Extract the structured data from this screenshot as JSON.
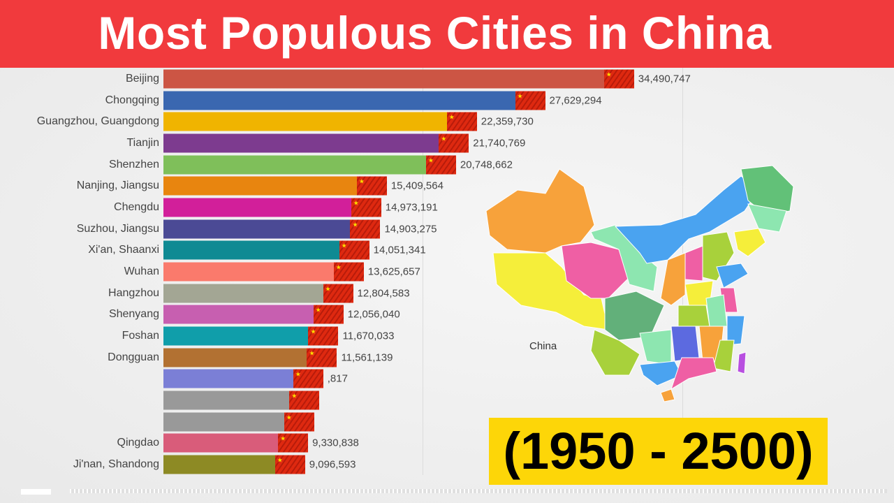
{
  "title": "Most Populous Cities in China",
  "year_range": "(1950 - 2500)",
  "map_label": "China",
  "chart_data": {
    "type": "bar",
    "orientation": "horizontal",
    "grid": true,
    "categories": [
      "Beijing",
      "Chongqing",
      "Guangzhou, Guangdong",
      "Tianjin",
      "Shenzhen",
      "Nanjing, Jiangsu",
      "Chengdu",
      "Suzhou, Jiangsu",
      "Xi'an, Shaanxi",
      "Wuhan",
      "Hangzhou",
      "Shenyang",
      "Foshan",
      "Dongguan",
      "",
      "",
      "",
      "Qingdao",
      "Ji'nan, Shandong"
    ],
    "values": [
      34490747,
      27629294,
      22359730,
      21740769,
      20748662,
      15409564,
      14973191,
      14903275,
      14051341,
      13625657,
      12804583,
      12056040,
      11670033,
      11561139,
      null,
      null,
      null,
      9330838,
      9096593
    ],
    "value_labels": [
      "34,490,747",
      "27,629,294",
      "22,359,730",
      "21,740,769",
      "20,748,662",
      "15,409,564",
      "14,973,191",
      "14,903,275",
      "14,051,341",
      "13,625,657",
      "12,804,583",
      "12,056,040",
      "11,670,033",
      "11,561,139",
      ",817",
      "",
      "",
      "9,330,838",
      "9,096,593"
    ],
    "colors": [
      "#cc5544",
      "#3a67b0",
      "#f0b400",
      "#7d3b8f",
      "#7fbf5a",
      "#e8850f",
      "#d21f9a",
      "#4b4a95",
      "#0f8a93",
      "#fa7a6c",
      "#a3a694",
      "#c75fb0",
      "#109eaa",
      "#b27132",
      "#7b7fd6",
      "#999999",
      "#999999",
      "#d95c7a",
      "#8d8a24"
    ],
    "bar_end_icon": "china-flag-icon"
  }
}
